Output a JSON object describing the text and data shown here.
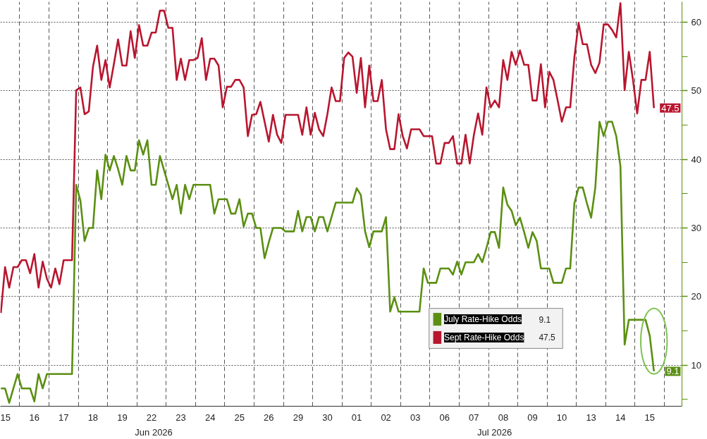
{
  "chart_data": {
    "type": "line",
    "categories": [
      null,
      null,
      null,
      "15",
      null,
      null,
      null,
      null,
      null,
      null,
      "16",
      null,
      null,
      null,
      null,
      null,
      null,
      "17",
      null,
      null,
      null,
      null,
      null,
      null,
      "18",
      null,
      null,
      null,
      null,
      null,
      null,
      "19",
      null,
      null,
      null,
      null,
      null,
      null,
      "22",
      null,
      null,
      null,
      null,
      null,
      null,
      "23",
      null,
      null,
      null,
      null,
      null,
      null,
      "24",
      null,
      null,
      null,
      null,
      null,
      null,
      "25",
      null,
      null,
      null,
      null,
      null,
      null,
      "26",
      null,
      null,
      null,
      null,
      null,
      null,
      "29",
      null,
      null,
      null,
      null,
      null,
      null,
      "30",
      null,
      null,
      null,
      null,
      null,
      null,
      "01",
      null,
      null,
      null,
      null,
      null,
      null,
      "02",
      null,
      null,
      null,
      null,
      null,
      null,
      "03",
      null,
      null,
      null,
      null,
      null,
      null,
      "06",
      null,
      null,
      null,
      null,
      null,
      null,
      "07",
      null,
      null,
      null,
      null,
      null,
      null,
      "08",
      null,
      null,
      null,
      null,
      null,
      null,
      "09",
      null,
      null,
      null,
      null,
      null,
      null,
      "10",
      null,
      null,
      null,
      null,
      null,
      null,
      "13",
      null,
      null,
      null,
      null,
      null,
      null,
      "14",
      null,
      null,
      null,
      null,
      null,
      null,
      "15",
      null,
      null,
      null
    ],
    "ylim": [
      4,
      63
    ],
    "yticks": [
      10,
      20,
      30,
      40,
      50,
      60
    ],
    "grid": true,
    "legend": "bottom right",
    "line_style": "solid",
    "marker": "none",
    "series": [
      {
        "name": "July Rate-Hike Odds",
        "color": "#5b8f12",
        "values": [
          null,
          null,
          6.6,
          6.6,
          4.5,
          6.6,
          8.7,
          6.6,
          6.6,
          6.6,
          4.7,
          8.7,
          6.6,
          8.7,
          8.7,
          8.7,
          8.7,
          8.7,
          8.7,
          8.7,
          36.3,
          34.0,
          28.1,
          30.0,
          30.0,
          38.4,
          34.2,
          40.7,
          38.4,
          40.5,
          38.6,
          36.3,
          40.5,
          38.4,
          38.4,
          42.8,
          40.7,
          42.8,
          36.3,
          36.3,
          40.5,
          38.4,
          36.3,
          34.2,
          36.3,
          32.1,
          36.3,
          34.2,
          36.3,
          36.3,
          36.3,
          36.3,
          36.3,
          32.1,
          34.2,
          34.2,
          34.2,
          32.1,
          32.1,
          34.2,
          30.2,
          32.1,
          32.1,
          30.0,
          30.0,
          25.6,
          27.9,
          30.0,
          30.0,
          30.0,
          29.5,
          29.5,
          29.5,
          32.5,
          29.5,
          31.6,
          31.6,
          29.5,
          31.6,
          31.6,
          29.5,
          31.6,
          33.7,
          33.7,
          33.7,
          33.7,
          33.7,
          35.8,
          34.8,
          29.5,
          27.2,
          29.5,
          29.5,
          29.5,
          31.6,
          17.8,
          19.9,
          17.8,
          17.8,
          17.8,
          17.8,
          17.8,
          17.8,
          24.1,
          22.0,
          22.0,
          22.0,
          24.1,
          24.1,
          24.1,
          23.2,
          25.1,
          23.2,
          25.0,
          25.0,
          25.0,
          26.2,
          25.0,
          27.1,
          29.4,
          29.4,
          27.1,
          35.9,
          33.4,
          32.5,
          30.4,
          31.5,
          29.4,
          27.1,
          29.4,
          28.1,
          24.1,
          24.1,
          24.1,
          22.0,
          22.0,
          22.0,
          24.1,
          24.1,
          33.6,
          35.9,
          35.9,
          33.6,
          31.5,
          35.9,
          45.5,
          43.4,
          45.5,
          45.5,
          43.4,
          39.0,
          13.0,
          16.6,
          16.6,
          16.6,
          16.6,
          16.6,
          14.3,
          9.1,
          null,
          null
        ]
      },
      {
        "name": "Sept Rate-Hike Odds",
        "color": "#b8162f",
        "values": [
          null,
          null,
          17.6,
          24.3,
          21.3,
          24.3,
          24.3,
          25.3,
          25.3,
          23.4,
          26.2,
          21.3,
          25.1,
          22.6,
          21.3,
          24.1,
          21.8,
          25.3,
          25.3,
          25.3,
          50.1,
          50.5,
          46.6,
          47.0,
          53.5,
          56.6,
          51.6,
          54.5,
          50.5,
          53.9,
          57.5,
          53.7,
          53.7,
          58.7,
          54.8,
          59.6,
          56.6,
          56.6,
          58.5,
          58.5,
          61.7,
          61.7,
          59.2,
          59.2,
          51.6,
          54.7,
          51.6,
          54.5,
          54.5,
          54.8,
          57.7,
          51.6,
          54.7,
          54.7,
          53.7,
          47.6,
          50.6,
          50.6,
          51.6,
          51.6,
          50.5,
          43.4,
          46.5,
          46.6,
          48.4,
          45.5,
          42.6,
          46.5,
          43.6,
          42.4,
          46.5,
          46.5,
          46.5,
          46.5,
          43.6,
          47.6,
          43.6,
          46.8,
          44.4,
          43.4,
          46.6,
          50.5,
          48.5,
          48.5,
          54.8,
          55.6,
          55.0,
          49.7,
          54.8,
          47.6,
          53.7,
          48.5,
          48.5,
          51.6,
          44.4,
          41.5,
          41.5,
          46.6,
          43.4,
          41.6,
          44.4,
          44.4,
          44.4,
          43.4,
          43.4,
          43.4,
          39.4,
          39.4,
          42.4,
          42.4,
          43.4,
          39.4,
          39.4,
          43.6,
          39.4,
          43.6,
          46.7,
          43.6,
          50.5,
          47.6,
          48.6,
          47.6,
          54.5,
          51.6,
          55.7,
          53.8,
          55.9,
          53.8,
          53.8,
          48.6,
          48.6,
          53.9,
          47.6,
          52.8,
          51.6,
          48.6,
          45.5,
          47.6,
          47.6,
          54.9,
          59.9,
          56.8,
          56.8,
          53.8,
          52.6,
          54.1,
          59.7,
          59.7,
          58.9,
          57.8,
          62.8,
          50.1,
          55.7,
          51.6,
          46.7,
          51.6,
          51.6,
          55.7,
          47.5,
          null,
          null
        ]
      }
    ],
    "annotations": [
      "9.1",
      "47.5",
      "Jun 2026",
      "Jul 2026"
    ]
  }
}
